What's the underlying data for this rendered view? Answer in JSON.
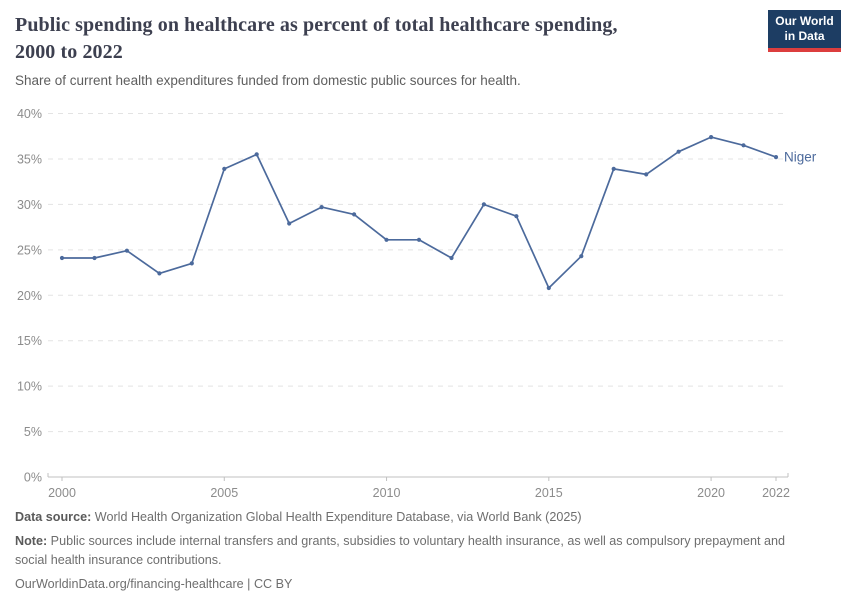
{
  "header": {
    "title": "Public spending on healthcare as percent of total healthcare spending, 2000 to 2022",
    "subtitle": "Share of current health expenditures funded from domestic public sources for health.",
    "logo": {
      "line1": "Our World",
      "line2": "in Data"
    }
  },
  "chart_data": {
    "type": "line",
    "title": "Public spending on healthcare as percent of total healthcare spending, 2000 to 2022",
    "xlabel": "",
    "ylabel": "",
    "xlim": [
      2000,
      2022
    ],
    "ylim": [
      0,
      40
    ],
    "x_ticks": [
      2000,
      2005,
      2010,
      2015,
      2020,
      2022
    ],
    "y_ticks": [
      0,
      5,
      10,
      15,
      20,
      25,
      30,
      35,
      40
    ],
    "y_tick_suffix": "%",
    "grid": "horizontal-dashed",
    "legend_position": "end-of-line-label",
    "end_label": "Niger",
    "series": [
      {
        "name": "Niger",
        "color": "#4C6A9C",
        "x": [
          2000,
          2001,
          2002,
          2003,
          2004,
          2005,
          2006,
          2007,
          2008,
          2009,
          2010,
          2011,
          2012,
          2013,
          2014,
          2015,
          2016,
          2017,
          2018,
          2019,
          2020,
          2021,
          2022
        ],
        "values": [
          24.1,
          24.1,
          24.9,
          22.4,
          23.5,
          33.9,
          35.5,
          27.9,
          29.7,
          28.9,
          26.1,
          26.1,
          24.1,
          30.0,
          28.7,
          20.8,
          24.3,
          33.9,
          33.3,
          35.8,
          37.4,
          36.5,
          35.2
        ]
      }
    ]
  },
  "footer": {
    "data_source_label": "Data source:",
    "data_source_text": " World Health Organization Global Health Expenditure Database, via World Bank (2025)",
    "note_label": "Note:",
    "note_text": " Public sources include internal transfers and grants, subsidies to voluntary health insurance, as well as compulsory prepayment and social health insurance contributions.",
    "url_text": "OurWorldinData.org/financing-healthcare | CC BY"
  },
  "colors": {
    "line": "#4C6A9C",
    "logo_navy": "#1d3d63",
    "logo_red": "#dc3e3e",
    "grid": "#e3e3e3",
    "axis": "#c0c0c0",
    "tick_label": "#8c8c8c",
    "title_text": "#3d4050",
    "body_text": "#5e5e5e"
  }
}
